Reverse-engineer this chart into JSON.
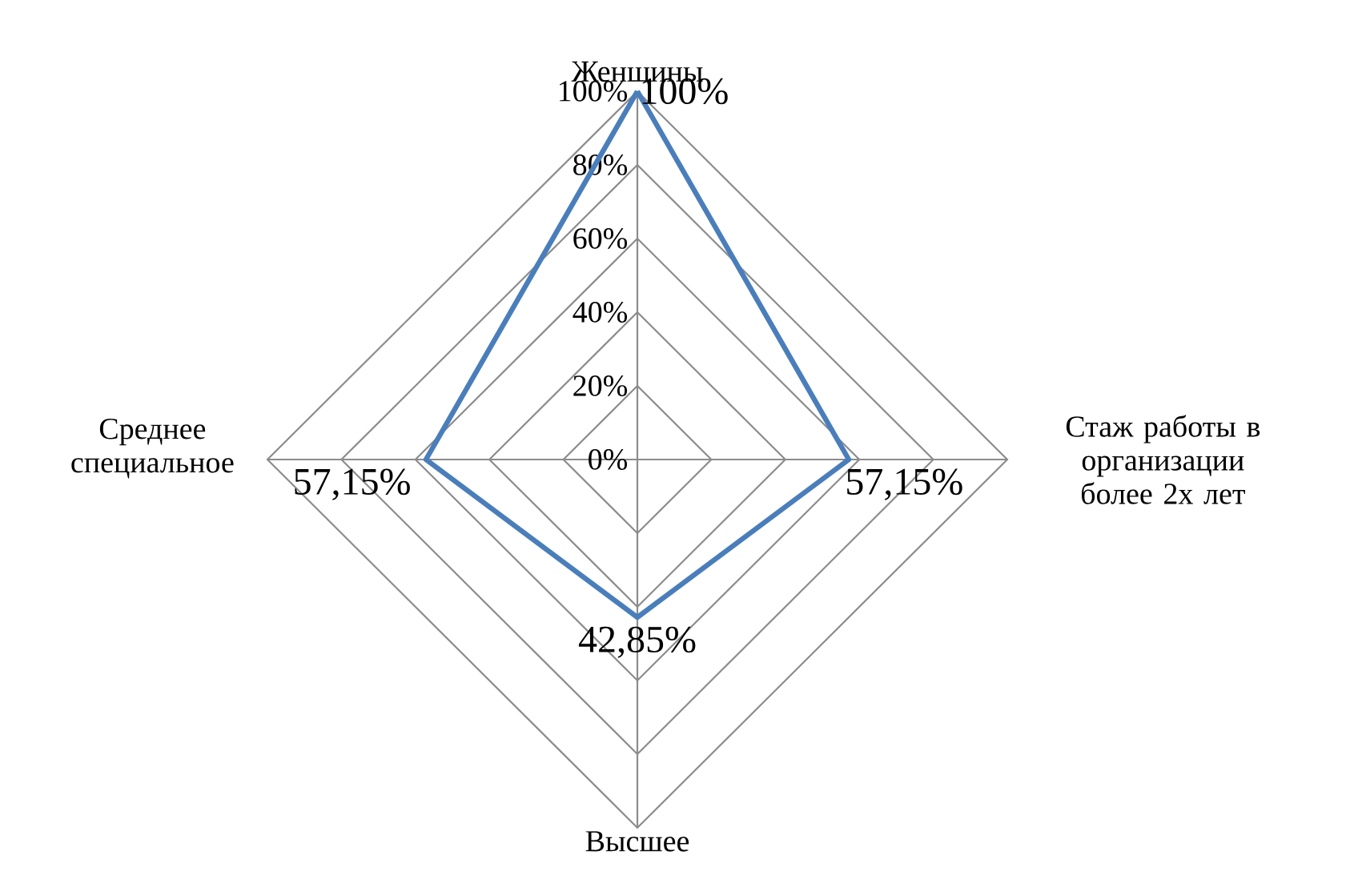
{
  "chart_data": {
    "type": "radar",
    "categories": [
      "Женщины",
      "Стаж работы в организации более 2х лет",
      "Высшее",
      "Среднее специальное"
    ],
    "series": [
      {
        "color": "#4a7ebb",
        "values": [
          100,
          57.15,
          42.85,
          57.15
        ],
        "value_labels": [
          "100%",
          "57,15%",
          "42,85%",
          "57,15%"
        ]
      }
    ],
    "ylim": [
      0,
      100
    ],
    "yticks": [
      {
        "value": 0,
        "label": "0%"
      },
      {
        "value": 20,
        "label": "20%"
      },
      {
        "value": 40,
        "label": "40%"
      },
      {
        "value": 60,
        "label": "60%"
      },
      {
        "value": 80,
        "label": "80%"
      },
      {
        "value": 100,
        "label": "100%"
      }
    ],
    "grid": true
  }
}
